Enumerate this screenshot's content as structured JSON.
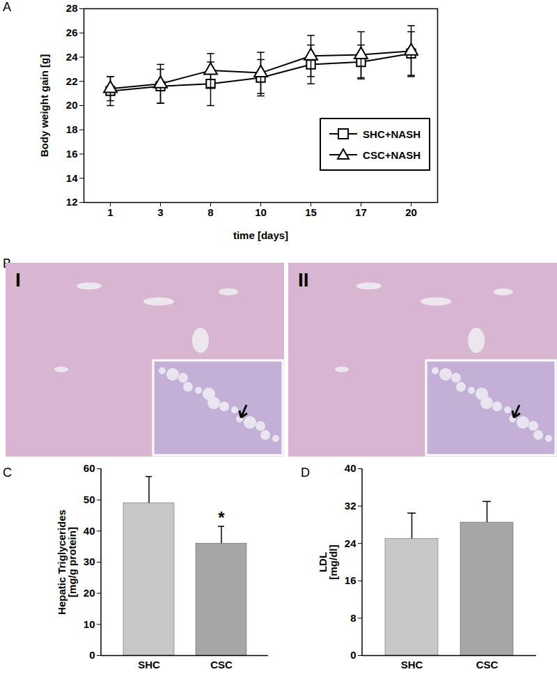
{
  "chart_data": [
    {
      "title": "A",
      "type": "line",
      "xlabel": "time [days]",
      "ylabel": "Body weight gain [g]",
      "categories": [
        "1",
        "3",
        "8",
        "10",
        "15",
        "17",
        "20"
      ],
      "series": [
        {
          "name": "SHC+NASH",
          "color": "#000000",
          "marker": "square",
          "values": [
            21.2,
            21.6,
            21.8,
            22.3,
            23.4,
            23.6,
            24.3
          ],
          "errors": [
            1.2,
            1.4,
            1.8,
            1.5,
            1.6,
            1.4,
            1.8
          ]
        },
        {
          "name": "CSC+NASH",
          "color": "#000000",
          "marker": "triangle",
          "values": [
            21.4,
            21.8,
            22.9,
            22.7,
            24.1,
            24.2,
            24.5
          ],
          "errors": [
            1.0,
            1.6,
            1.4,
            1.7,
            1.7,
            1.9,
            2.1
          ]
        }
      ],
      "ylim": [
        12,
        28
      ],
      "yticks": [
        12,
        14,
        16,
        18,
        20,
        22,
        24,
        26,
        28
      ],
      "legend": "bottom right"
    },
    {
      "title": "C",
      "type": "bar",
      "ylabel": "Hepatic Triglycerides\n[mg/g protein]",
      "categories": [
        "SHC",
        "CSC"
      ],
      "values": [
        49,
        36
      ],
      "errors": [
        8.5,
        5.5
      ],
      "colors": [
        "#c8c8c8",
        "#a6a6a6"
      ],
      "ylim": [
        0,
        60
      ],
      "yticks": [
        0,
        10,
        20,
        30,
        40,
        50,
        60
      ],
      "annotations": [
        {
          "category": "CSC",
          "text": "*"
        }
      ]
    },
    {
      "title": "D",
      "type": "bar",
      "ylabel": "LDL\n[mg/dl]",
      "categories": [
        "SHC",
        "CSC"
      ],
      "values": [
        25,
        28.5
      ],
      "errors": [
        5.5,
        4.5
      ],
      "colors": [
        "#c8c8c8",
        "#a6a6a6"
      ],
      "ylim": [
        0,
        40
      ],
      "yticks": [
        0,
        8,
        16,
        24,
        32,
        40
      ]
    }
  ],
  "images": {
    "title": "B",
    "panels": [
      "I",
      "II"
    ]
  }
}
